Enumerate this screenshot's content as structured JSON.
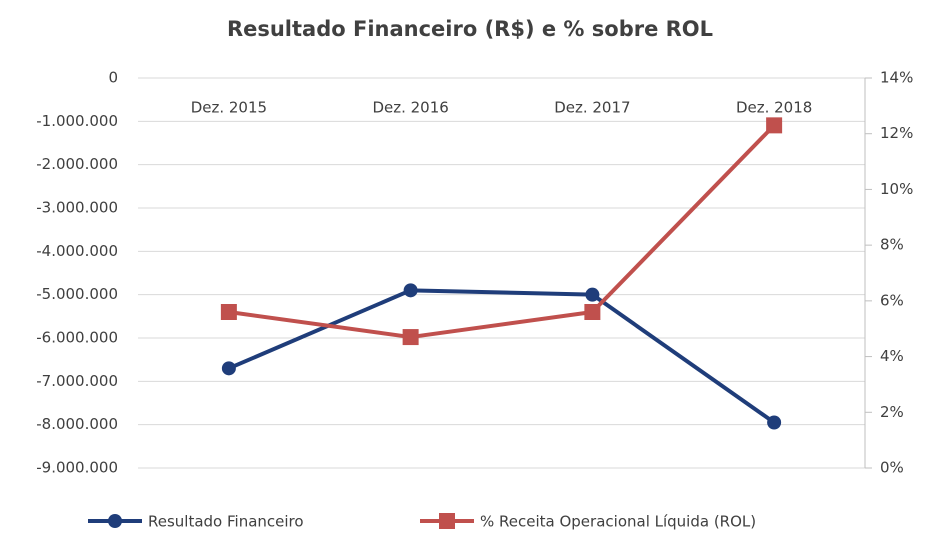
{
  "chart_data": {
    "type": "line",
    "title": "Resultado Financeiro (R$) e % sobre ROL",
    "categories": [
      "Dez. 2015",
      "Dez. 2016",
      "Dez. 2017",
      "Dez. 2018"
    ],
    "series": [
      {
        "name": "Resultado Financeiro",
        "color": "#1f3d7a",
        "marker": "circle",
        "values": [
          -6700000,
          -4900000,
          -5000000,
          -7950000
        ]
      },
      {
        "name": "% Receita Operacional Líquida (ROL)",
        "color": "#c0504d",
        "marker": "square",
        "axis": "y2",
        "values": [
          5.6,
          4.7,
          5.6,
          12.3
        ]
      }
    ],
    "ylim": [
      -9000000,
      0
    ],
    "yticks": [
      {
        "value": 0,
        "label": "0"
      },
      {
        "value": -1000000,
        "label": "-1.000.000"
      },
      {
        "value": -2000000,
        "label": "-2.000.000"
      },
      {
        "value": -3000000,
        "label": "-3.000.000"
      },
      {
        "value": -4000000,
        "label": "-4.000.000"
      },
      {
        "value": -5000000,
        "label": "-5.000.000"
      },
      {
        "value": -6000000,
        "label": "-6.000.000"
      },
      {
        "value": -7000000,
        "label": "-7.000.000"
      },
      {
        "value": -8000000,
        "label": "-8.000.000"
      },
      {
        "value": -9000000,
        "label": "-9.000.000"
      }
    ],
    "y2lim": [
      0,
      14
    ],
    "y2ticks": [
      {
        "value": 0,
        "label": "0%"
      },
      {
        "value": 2,
        "label": "2%"
      },
      {
        "value": 4,
        "label": "4%"
      },
      {
        "value": 6,
        "label": "6%"
      },
      {
        "value": 8,
        "label": "8%"
      },
      {
        "value": 10,
        "label": "10%"
      },
      {
        "value": 12,
        "label": "12%"
      },
      {
        "value": 14,
        "label": "14%"
      }
    ],
    "grid": true,
    "legend": "bottom"
  }
}
